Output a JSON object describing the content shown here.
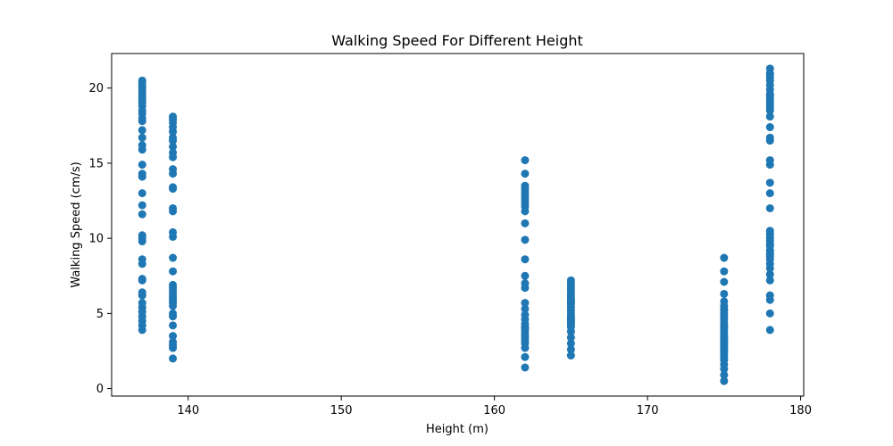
{
  "chart_data": {
    "type": "scatter",
    "title": "Walking Speed For Different Height",
    "xlabel": "Height (m)",
    "ylabel": "Walking Speed (cm/s)",
    "xlim": [
      135,
      180.2
    ],
    "ylim": [
      -0.5,
      22.3
    ],
    "xticks": [
      140,
      150,
      160,
      170,
      180
    ],
    "yticks": [
      0,
      5,
      10,
      15,
      20
    ],
    "grid": false,
    "legend": "none",
    "marker_color": "#1f77b4",
    "series": [
      {
        "x": [
          137,
          137,
          137,
          137,
          137,
          137,
          137,
          137,
          137,
          137,
          137,
          137,
          137,
          137,
          137,
          137,
          137,
          137,
          137,
          137,
          137,
          137,
          137,
          137,
          137,
          137,
          137,
          137,
          137,
          137,
          137,
          137,
          137,
          137,
          137,
          137,
          137,
          137,
          137,
          137,
          139,
          139,
          139,
          139,
          139,
          139,
          139,
          139,
          139,
          139,
          139,
          139,
          139,
          139,
          139,
          139,
          139,
          139,
          139,
          139,
          139,
          139,
          139,
          139,
          139,
          139,
          139,
          139,
          139,
          139,
          139,
          139,
          139,
          139,
          139,
          139,
          162,
          162,
          162,
          162,
          162,
          162,
          162,
          162,
          162,
          162,
          162,
          162,
          162,
          162,
          162,
          162,
          162,
          162,
          162,
          162,
          162,
          162,
          162,
          162,
          162,
          162,
          162,
          162,
          162,
          162,
          162,
          162,
          162,
          165,
          165,
          165,
          165,
          165,
          165,
          165,
          165,
          165,
          165,
          165,
          165,
          165,
          165,
          165,
          165,
          165,
          165,
          165,
          165,
          165,
          165,
          165,
          165,
          165,
          165,
          175,
          175,
          175,
          175,
          175,
          175,
          175,
          175,
          175,
          175,
          175,
          175,
          175,
          175,
          175,
          175,
          175,
          175,
          175,
          175,
          175,
          175,
          175,
          175,
          175,
          175,
          175,
          175,
          175,
          175,
          175,
          175,
          175,
          175,
          175,
          175,
          178,
          178,
          178,
          178,
          178,
          178,
          178,
          178,
          178,
          178,
          178,
          178,
          178,
          178,
          178,
          178,
          178,
          178,
          178,
          178,
          178,
          178,
          178,
          178,
          178,
          178,
          178,
          178,
          178,
          178,
          178,
          178,
          178,
          178,
          178,
          178,
          178,
          178,
          178,
          178,
          178,
          178,
          178
        ],
        "y": [
          3.9,
          4.2,
          4.5,
          4.8,
          5.1,
          5.4,
          5.7,
          6.2,
          6.4,
          7.2,
          7.3,
          8.3,
          8.6,
          9.8,
          10.0,
          10.2,
          11.6,
          12.2,
          13.0,
          14.1,
          14.3,
          14.9,
          15.9,
          16.2,
          16.7,
          17.2,
          17.8,
          18.0,
          18.3,
          18.5,
          18.8,
          19.0,
          19.2,
          19.4,
          19.6,
          19.8,
          20.0,
          20.2,
          20.4,
          20.5,
          2.0,
          2.7,
          2.9,
          3.1,
          3.5,
          4.2,
          4.8,
          5.0,
          5.5,
          5.7,
          5.9,
          6.1,
          6.3,
          6.5,
          6.7,
          6.9,
          7.8,
          8.7,
          10.1,
          10.4,
          11.8,
          12.0,
          13.3,
          13.4,
          14.3,
          14.6,
          15.4,
          15.7,
          16.1,
          16.5,
          16.7,
          17.1,
          17.4,
          17.7,
          17.9,
          18.1,
          1.4,
          2.1,
          2.7,
          3.0,
          3.2,
          3.5,
          3.7,
          3.9,
          4.1,
          4.3,
          4.6,
          4.9,
          5.3,
          5.7,
          6.7,
          7.0,
          7.5,
          8.6,
          9.9,
          11.0,
          11.8,
          12.1,
          12.3,
          12.5,
          12.7,
          12.9,
          13.1,
          13.3,
          13.5,
          14.3,
          15.2,
          3.4,
          4.0,
          2.2,
          2.6,
          3.0,
          3.4,
          3.8,
          4.1,
          4.3,
          4.5,
          4.6,
          4.8,
          5.0,
          5.2,
          5.4,
          5.6,
          5.7,
          5.8,
          5.9,
          6.0,
          6.2,
          6.4,
          6.6,
          6.8,
          7.0,
          7.2,
          4.4,
          4.7,
          0.5,
          0.9,
          1.3,
          1.6,
          1.9,
          2.1,
          2.3,
          2.5,
          2.6,
          2.7,
          2.8,
          2.9,
          3.0,
          3.1,
          3.2,
          3.3,
          3.5,
          3.6,
          3.8,
          4.0,
          4.2,
          4.4,
          4.6,
          4.8,
          5.0,
          5.2,
          5.5,
          5.8,
          6.3,
          7.1,
          7.8,
          8.7,
          2.4,
          3.4,
          4.1,
          5.3,
          3.9,
          5.0,
          5.9,
          6.2,
          7.2,
          7.6,
          8.0,
          8.3,
          8.6,
          8.9,
          9.2,
          9.5,
          9.8,
          10.1,
          10.3,
          10.5,
          12.0,
          13.0,
          13.7,
          14.9,
          15.2,
          16.5,
          16.7,
          17.4,
          18.1,
          18.5,
          18.9,
          19.1,
          19.3,
          19.6,
          19.9,
          20.2,
          20.5,
          20.7,
          21.0,
          21.3,
          9.0,
          9.6,
          10.0,
          8.8,
          18.7,
          19.5,
          20.9
        ]
      }
    ]
  }
}
